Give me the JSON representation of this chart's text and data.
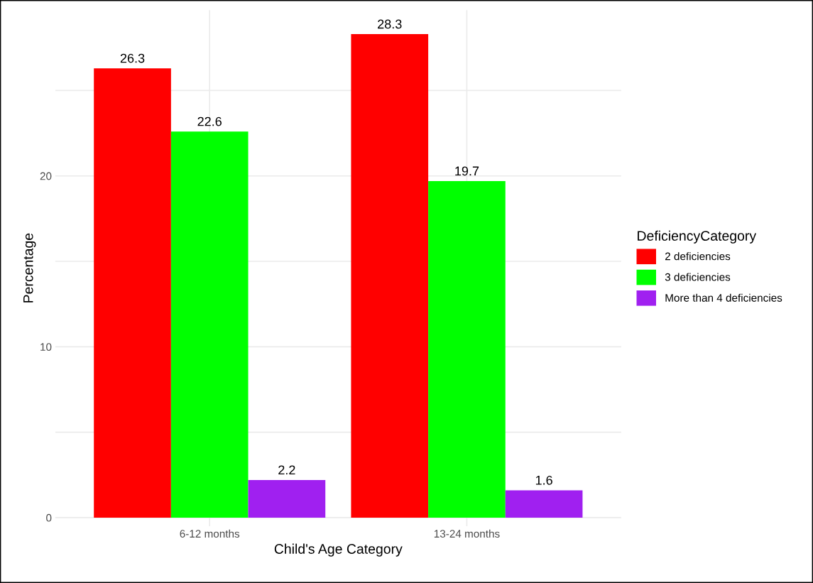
{
  "chart_data": {
    "type": "bar",
    "xlabel": "Child's Age Category",
    "ylabel": "Percentage",
    "legend_title": "DeficiencyCategory",
    "categories": [
      "6-12 months",
      "13-24 months"
    ],
    "series": [
      {
        "name": "2 deficiencies",
        "color": "#ff0000",
        "values": [
          26.3,
          28.3
        ]
      },
      {
        "name": "3 deficiencies",
        "color": "#00ff00",
        "values": [
          22.6,
          19.7
        ]
      },
      {
        "name": "More than 4 deficiencies",
        "color": "#a020f0",
        "values": [
          2.2,
          1.6
        ]
      }
    ],
    "ylim": [
      -0.5,
      29.7
    ],
    "yticks": [
      0,
      {
        "value": 5,
        "label": null
      },
      10,
      {
        "value": 15,
        "label": null
      },
      20,
      {
        "value": 25,
        "label": null
      }
    ],
    "grid": true,
    "legend": "right",
    "data_labels": true
  }
}
